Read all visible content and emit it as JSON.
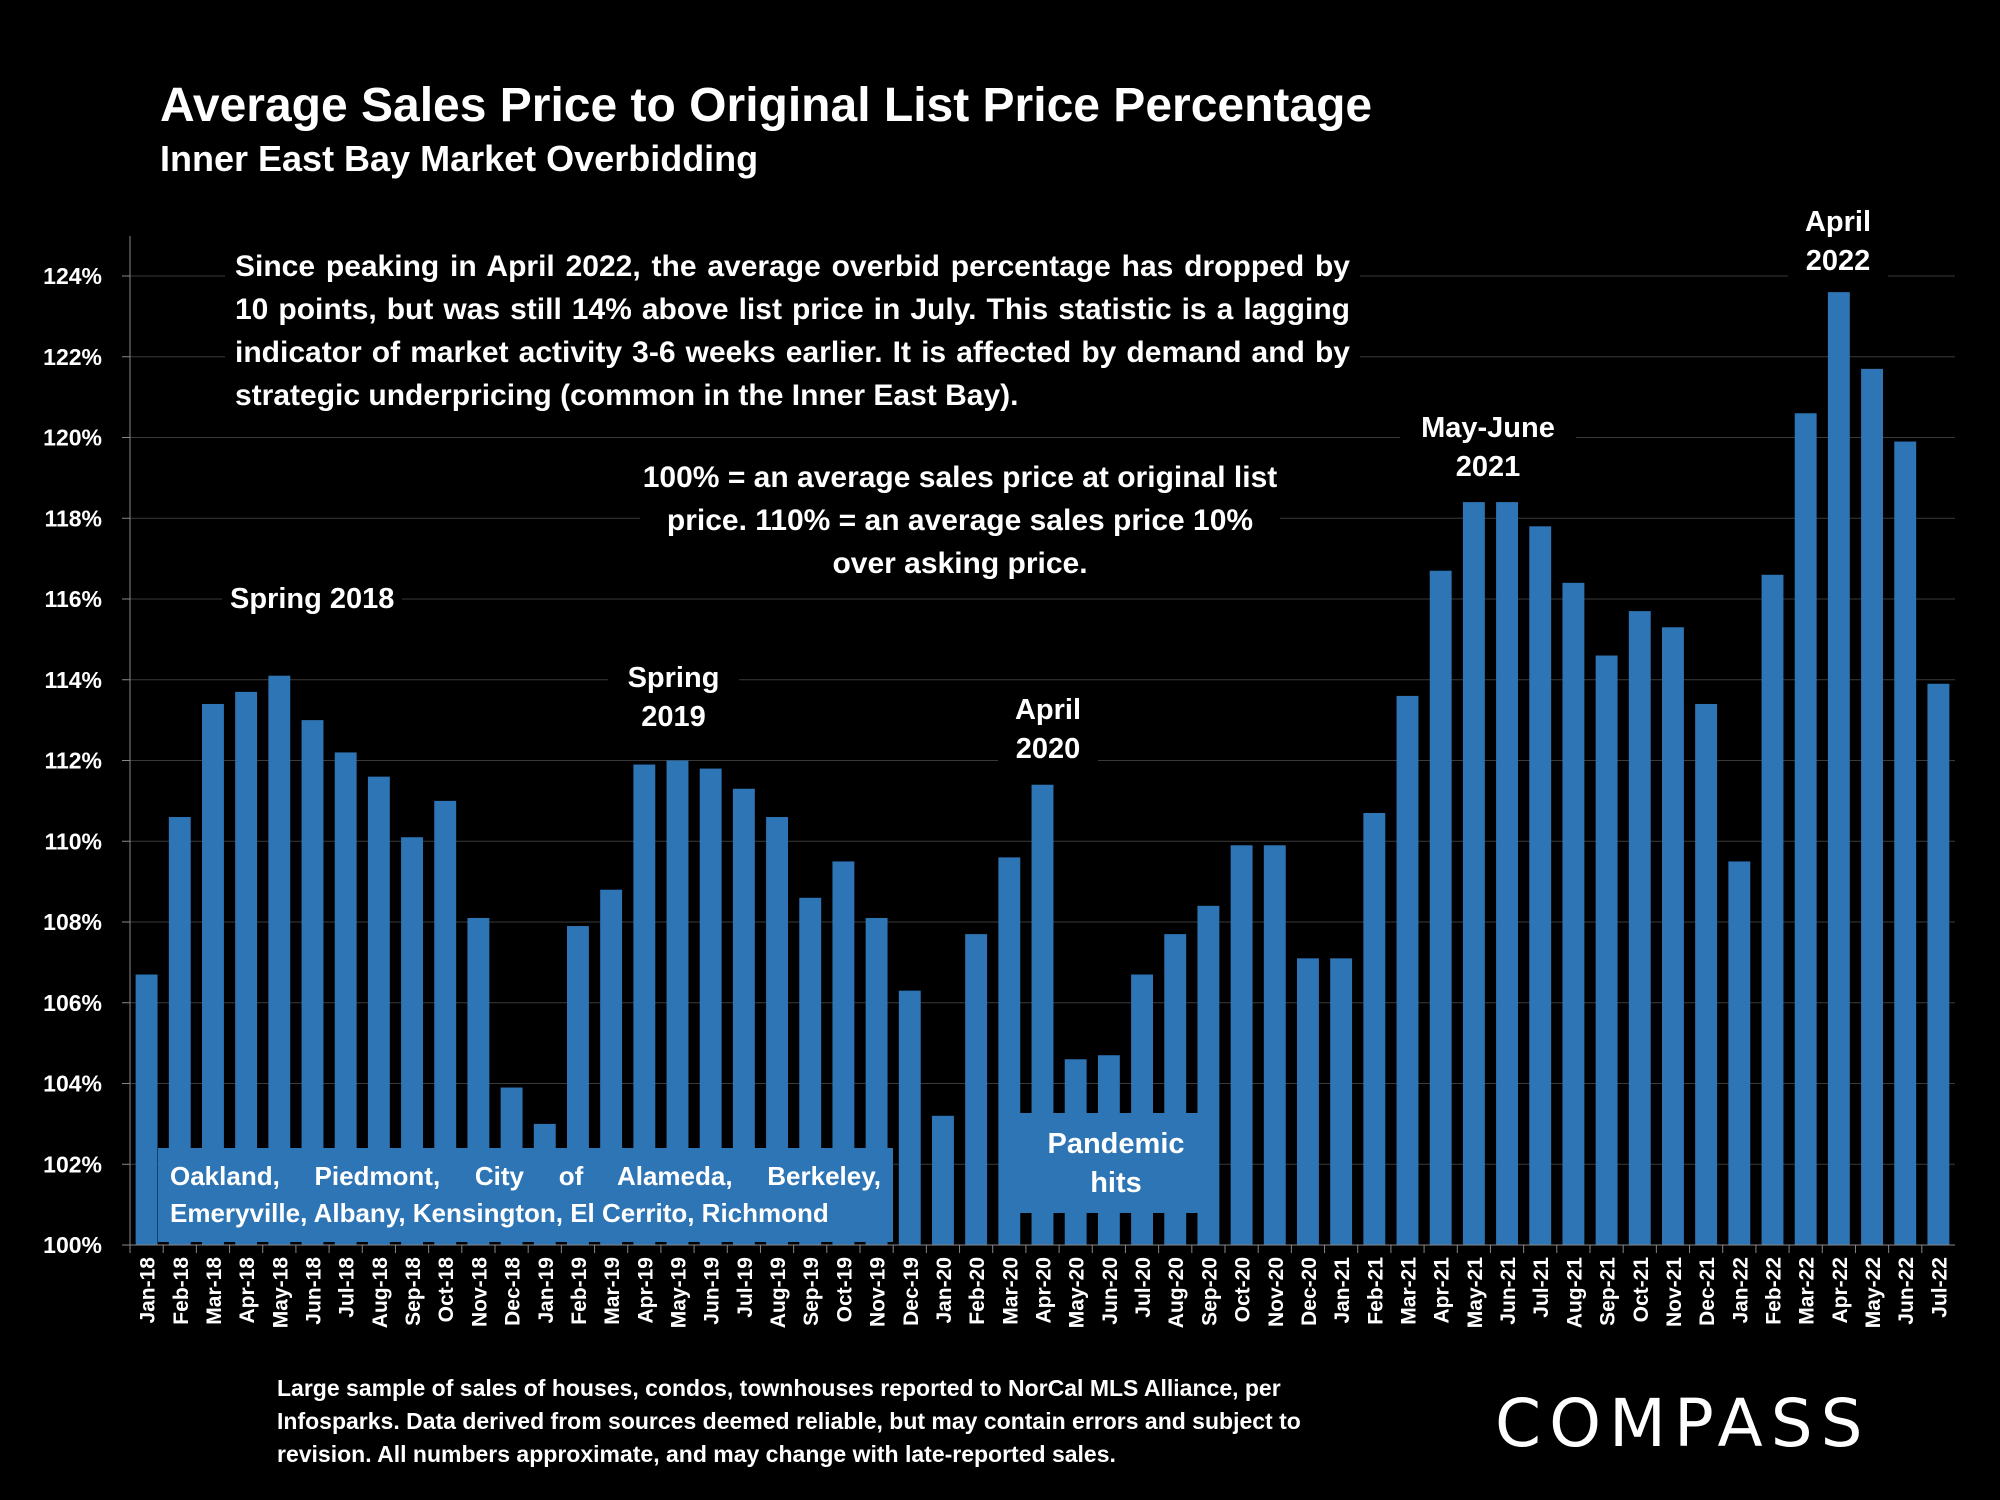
{
  "title": "Average Sales Price to Original List Price Percentage",
  "subtitle": "Inner East Bay Market Overbidding",
  "note": "Since peaking in April 2022, the average overbid percentage has dropped by 10 points, but was still 14% above list price in July. This statistic is a lagging indicator of market activity 3-6 weeks earlier. It is affected by demand and by strategic underpricing (common in the Inner East Bay).",
  "definition": "100% = an average sales price at original list price. 110% = an average sales price 10% over asking price.",
  "annotations": {
    "spring2018": "Spring 2018",
    "spring2019": "Spring 2019",
    "april2020": "April 2020",
    "mayjune2021": "May-June 2021",
    "april2022": "April 2022",
    "pandemic": "Pandemic hits",
    "cities": "Oakland, Piedmont, City of Alameda, Berkeley, Emeryville, Albany, Kensington, El Cerrito, Richmond"
  },
  "footnote": "Large sample of sales of houses, condos, townhouses reported to NorCal MLS Alliance, per Infosparks. Data derived from sources deemed reliable, but may contain errors and subject to revision. All numbers approximate, and may change with late-reported sales.",
  "logo": "COMPASS",
  "colors": {
    "bar": "#2e75b6",
    "background": "#000000",
    "grid": "#3a3a3a"
  },
  "chart_data": {
    "type": "bar",
    "ylim": [
      100,
      124
    ],
    "yticks": [
      "100%",
      "102%",
      "104%",
      "106%",
      "108%",
      "110%",
      "112%",
      "114%",
      "116%",
      "118%",
      "120%",
      "122%",
      "124%"
    ],
    "grid": true,
    "categories": [
      "Jan-18",
      "Feb-18",
      "Mar-18",
      "Apr-18",
      "May-18",
      "Jun-18",
      "Jul-18",
      "Aug-18",
      "Sep-18",
      "Oct-18",
      "Nov-18",
      "Dec-18",
      "Jan-19",
      "Feb-19",
      "Mar-19",
      "Apr-19",
      "May-19",
      "Jun-19",
      "Jul-19",
      "Aug-19",
      "Sep-19",
      "Oct-19",
      "Nov-19",
      "Dec-19",
      "Jan-20",
      "Feb-20",
      "Mar-20",
      "Apr-20",
      "May-20",
      "Jun-20",
      "Jul-20",
      "Aug-20",
      "Sep-20",
      "Oct-20",
      "Nov-20",
      "Dec-20",
      "Jan-21",
      "Feb-21",
      "Mar-21",
      "Apr-21",
      "May-21",
      "Jun-21",
      "Jul-21",
      "Aug-21",
      "Sep-21",
      "Oct-21",
      "Nov-21",
      "Dec-21",
      "Jan-22",
      "Feb-22",
      "Mar-22",
      "Apr-22",
      "May-22",
      "Jun-22",
      "Jul-22"
    ],
    "values": [
      106.7,
      110.6,
      113.4,
      113.7,
      114.1,
      113.0,
      112.2,
      111.6,
      110.1,
      111.0,
      108.1,
      103.9,
      103.0,
      107.9,
      108.8,
      111.9,
      112.0,
      111.8,
      111.3,
      110.6,
      108.6,
      109.5,
      108.1,
      106.3,
      103.2,
      107.7,
      109.6,
      111.4,
      104.6,
      104.7,
      106.7,
      107.7,
      108.4,
      109.9,
      109.9,
      107.1,
      107.1,
      110.7,
      113.6,
      116.7,
      118.4,
      118.4,
      117.8,
      116.4,
      114.6,
      115.7,
      115.3,
      113.4,
      109.5,
      116.6,
      120.6,
      123.6,
      121.7,
      119.9,
      113.9
    ]
  }
}
